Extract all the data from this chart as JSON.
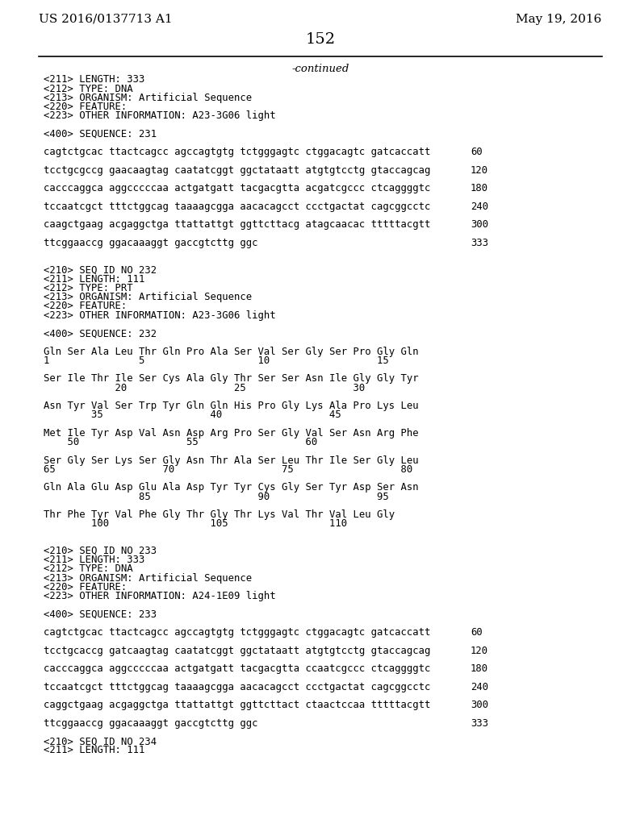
{
  "bg_color": "#ffffff",
  "header_left": "US 2016/0137713 A1",
  "header_right": "May 19, 2016",
  "page_number": "152",
  "continued_label": "-continued",
  "content_lines": [
    {
      "text": "<211> LENGTH: 333",
      "type": "meta",
      "indent": 70
    },
    {
      "text": "<212> TYPE: DNA",
      "type": "meta",
      "indent": 70
    },
    {
      "text": "<213> ORGANISM: Artificial Sequence",
      "type": "meta",
      "indent": 70
    },
    {
      "text": "<220> FEATURE:",
      "type": "meta",
      "indent": 70
    },
    {
      "text": "<223> OTHER INFORMATION: A23-3G06 light",
      "type": "meta",
      "indent": 70
    },
    {
      "text": "",
      "type": "blank"
    },
    {
      "text": "<400> SEQUENCE: 231",
      "type": "meta",
      "indent": 70
    },
    {
      "text": "",
      "type": "blank"
    },
    {
      "text": "cagtctgcac ttactcagcc agccagtgtg tctgggagtc ctggacagtc gatcaccatt",
      "type": "seq",
      "num": "60",
      "indent": 70
    },
    {
      "text": "",
      "type": "blank"
    },
    {
      "text": "tcctgcgccg gaacaagtag caatatcggt ggctataatt atgtgtcctg gtaccagcag",
      "type": "seq",
      "num": "120",
      "indent": 70
    },
    {
      "text": "",
      "type": "blank"
    },
    {
      "text": "cacccaggca aggcccccaa actgatgatt tacgacgtta acgatcgccc ctcaggggtc",
      "type": "seq",
      "num": "180",
      "indent": 70
    },
    {
      "text": "",
      "type": "blank"
    },
    {
      "text": "tccaatcgct tttctggcag taaaagcgga aacacagcct ccctgactat cagcggcctc",
      "type": "seq",
      "num": "240",
      "indent": 70
    },
    {
      "text": "",
      "type": "blank"
    },
    {
      "text": "caagctgaag acgaggctga ttattattgt ggttcttacg atagcaacac tttttacgtt",
      "type": "seq",
      "num": "300",
      "indent": 70
    },
    {
      "text": "",
      "type": "blank"
    },
    {
      "text": "ttcggaaccg ggacaaaggt gaccgtcttg ggc",
      "type": "seq",
      "num": "333",
      "indent": 70
    },
    {
      "text": "",
      "type": "blank"
    },
    {
      "text": "",
      "type": "blank"
    },
    {
      "text": "<210> SEQ ID NO 232",
      "type": "meta",
      "indent": 70
    },
    {
      "text": "<211> LENGTH: 111",
      "type": "meta",
      "indent": 70
    },
    {
      "text": "<212> TYPE: PRT",
      "type": "meta",
      "indent": 70
    },
    {
      "text": "<213> ORGANISM: Artificial Sequence",
      "type": "meta",
      "indent": 70
    },
    {
      "text": "<220> FEATURE:",
      "type": "meta",
      "indent": 70
    },
    {
      "text": "<223> OTHER INFORMATION: A23-3G06 light",
      "type": "meta",
      "indent": 70
    },
    {
      "text": "",
      "type": "blank"
    },
    {
      "text": "<400> SEQUENCE: 232",
      "type": "meta",
      "indent": 70
    },
    {
      "text": "",
      "type": "blank"
    },
    {
      "text": "Gln Ser Ala Leu Thr Gln Pro Ala Ser Val Ser Gly Ser Pro Gly Gln",
      "type": "prt",
      "indent": 70
    },
    {
      "text": "1               5                   10                  15",
      "type": "prtnum",
      "indent": 70
    },
    {
      "text": "",
      "type": "blank"
    },
    {
      "text": "Ser Ile Thr Ile Ser Cys Ala Gly Thr Ser Ser Asn Ile Gly Gly Tyr",
      "type": "prt",
      "indent": 70
    },
    {
      "text": "            20                  25                  30",
      "type": "prtnum",
      "indent": 70
    },
    {
      "text": "",
      "type": "blank"
    },
    {
      "text": "Asn Tyr Val Ser Trp Tyr Gln Gln His Pro Gly Lys Ala Pro Lys Leu",
      "type": "prt",
      "indent": 70
    },
    {
      "text": "        35                  40                  45",
      "type": "prtnum",
      "indent": 70
    },
    {
      "text": "",
      "type": "blank"
    },
    {
      "text": "Met Ile Tyr Asp Val Asn Asp Arg Pro Ser Gly Val Ser Asn Arg Phe",
      "type": "prt",
      "indent": 70
    },
    {
      "text": "    50                  55                  60",
      "type": "prtnum",
      "indent": 70
    },
    {
      "text": "",
      "type": "blank"
    },
    {
      "text": "Ser Gly Ser Lys Ser Gly Asn Thr Ala Ser Leu Thr Ile Ser Gly Leu",
      "type": "prt",
      "indent": 70
    },
    {
      "text": "65                  70                  75                  80",
      "type": "prtnum",
      "indent": 70
    },
    {
      "text": "",
      "type": "blank"
    },
    {
      "text": "Gln Ala Glu Asp Glu Ala Asp Tyr Tyr Cys Gly Ser Tyr Asp Ser Asn",
      "type": "prt",
      "indent": 70
    },
    {
      "text": "                85                  90                  95",
      "type": "prtnum",
      "indent": 70
    },
    {
      "text": "",
      "type": "blank"
    },
    {
      "text": "Thr Phe Tyr Val Phe Gly Thr Gly Thr Lys Val Thr Val Leu Gly",
      "type": "prt",
      "indent": 70
    },
    {
      "text": "        100                 105                 110",
      "type": "prtnum",
      "indent": 70
    },
    {
      "text": "",
      "type": "blank"
    },
    {
      "text": "",
      "type": "blank"
    },
    {
      "text": "<210> SEQ ID NO 233",
      "type": "meta",
      "indent": 70
    },
    {
      "text": "<211> LENGTH: 333",
      "type": "meta",
      "indent": 70
    },
    {
      "text": "<212> TYPE: DNA",
      "type": "meta",
      "indent": 70
    },
    {
      "text": "<213> ORGANISM: Artificial Sequence",
      "type": "meta",
      "indent": 70
    },
    {
      "text": "<220> FEATURE:",
      "type": "meta",
      "indent": 70
    },
    {
      "text": "<223> OTHER INFORMATION: A24-1E09 light",
      "type": "meta",
      "indent": 70
    },
    {
      "text": "",
      "type": "blank"
    },
    {
      "text": "<400> SEQUENCE: 233",
      "type": "meta",
      "indent": 70
    },
    {
      "text": "",
      "type": "blank"
    },
    {
      "text": "cagtctgcac ttactcagcc agccagtgtg tctgggagtc ctggacagtc gatcaccatt",
      "type": "seq",
      "num": "60",
      "indent": 70
    },
    {
      "text": "",
      "type": "blank"
    },
    {
      "text": "tcctgcaccg gatcaagtag caatatcggt ggctataatt atgtgtcctg gtaccagcag",
      "type": "seq",
      "num": "120",
      "indent": 70
    },
    {
      "text": "",
      "type": "blank"
    },
    {
      "text": "cacccaggca aggcccccaa actgatgatt tacgacgtta ccaatcgccc ctcaggggtc",
      "type": "seq",
      "num": "180",
      "indent": 70
    },
    {
      "text": "",
      "type": "blank"
    },
    {
      "text": "tccaatcgct tttctggcag taaaagcgga aacacagcct ccctgactat cagcggcctc",
      "type": "seq",
      "num": "240",
      "indent": 70
    },
    {
      "text": "",
      "type": "blank"
    },
    {
      "text": "caggctgaag acgaggctga ttattattgt ggttcttact ctaactccaa tttttacgtt",
      "type": "seq",
      "num": "300",
      "indent": 70
    },
    {
      "text": "",
      "type": "blank"
    },
    {
      "text": "ttcggaaccg ggacaaaggt gaccgtcttg ggc",
      "type": "seq",
      "num": "333",
      "indent": 70
    },
    {
      "text": "",
      "type": "blank"
    },
    {
      "text": "<210> SEQ ID NO 234",
      "type": "meta",
      "indent": 70
    },
    {
      "text": "<211> LENGTH: 111",
      "type": "meta",
      "indent": 70
    }
  ]
}
